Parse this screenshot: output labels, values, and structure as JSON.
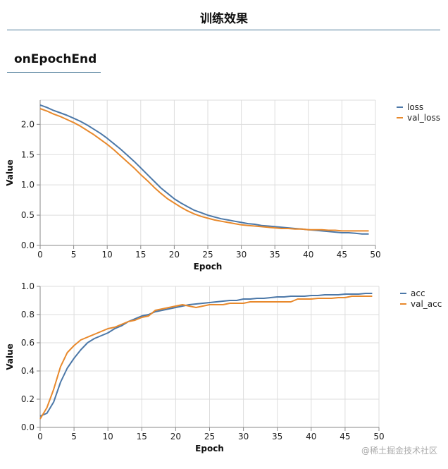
{
  "header": {
    "title": "训练效果"
  },
  "section": {
    "tab_label": "onEpochEnd"
  },
  "watermark": "@稀土掘金技术社区",
  "colors": {
    "series_blue": "#4c78a8",
    "series_orange": "#e8892c",
    "grid": "#dddddd",
    "axis": "#888888"
  },
  "chart_data": [
    {
      "type": "line",
      "xlabel": "Epoch",
      "ylabel": "Value",
      "xlim": [
        0,
        50
      ],
      "ylim": [
        0,
        2.4
      ],
      "xticks": [
        0,
        5,
        10,
        15,
        20,
        25,
        30,
        35,
        40,
        45,
        50
      ],
      "yticks": [
        0.0,
        0.5,
        1.0,
        1.5,
        2.0
      ],
      "ytick_labels": [
        "0.0",
        "0.5",
        "1.0",
        "1.5",
        "2.0"
      ],
      "grid": true,
      "legend": "top-right",
      "series": [
        {
          "name": "loss",
          "x": [
            0,
            1,
            2,
            3,
            4,
            5,
            6,
            7,
            8,
            9,
            10,
            11,
            12,
            13,
            14,
            15,
            16,
            17,
            18,
            19,
            20,
            21,
            22,
            23,
            24,
            25,
            26,
            27,
            28,
            29,
            30,
            31,
            32,
            33,
            34,
            35,
            36,
            37,
            38,
            39,
            40,
            41,
            42,
            43,
            44,
            45,
            46,
            47,
            48,
            49
          ],
          "values": [
            2.32,
            2.28,
            2.23,
            2.19,
            2.15,
            2.1,
            2.05,
            1.99,
            1.92,
            1.85,
            1.77,
            1.68,
            1.59,
            1.49,
            1.39,
            1.28,
            1.17,
            1.06,
            0.95,
            0.86,
            0.77,
            0.7,
            0.64,
            0.58,
            0.54,
            0.5,
            0.47,
            0.44,
            0.42,
            0.4,
            0.38,
            0.36,
            0.35,
            0.33,
            0.32,
            0.31,
            0.3,
            0.29,
            0.28,
            0.27,
            0.26,
            0.25,
            0.24,
            0.23,
            0.22,
            0.21,
            0.21,
            0.2,
            0.19,
            0.19
          ]
        },
        {
          "name": "val_loss",
          "x": [
            0,
            1,
            2,
            3,
            4,
            5,
            6,
            7,
            8,
            9,
            10,
            11,
            12,
            13,
            14,
            15,
            16,
            17,
            18,
            19,
            20,
            21,
            22,
            23,
            24,
            25,
            26,
            27,
            28,
            29,
            30,
            31,
            32,
            33,
            34,
            35,
            36,
            37,
            38,
            39,
            40,
            41,
            42,
            43,
            44,
            45,
            46,
            47,
            48,
            49
          ],
          "values": [
            2.26,
            2.22,
            2.17,
            2.13,
            2.08,
            2.03,
            1.97,
            1.9,
            1.83,
            1.75,
            1.67,
            1.58,
            1.48,
            1.38,
            1.28,
            1.17,
            1.07,
            0.96,
            0.86,
            0.77,
            0.7,
            0.63,
            0.57,
            0.52,
            0.48,
            0.45,
            0.42,
            0.4,
            0.38,
            0.36,
            0.34,
            0.33,
            0.32,
            0.31,
            0.3,
            0.29,
            0.28,
            0.28,
            0.27,
            0.27,
            0.26,
            0.26,
            0.26,
            0.25,
            0.25,
            0.24,
            0.24,
            0.24,
            0.24,
            0.24
          ]
        }
      ]
    },
    {
      "type": "line",
      "xlabel": "Epoch",
      "ylabel": "Value",
      "xlim": [
        0,
        50
      ],
      "ylim": [
        0,
        1.0
      ],
      "xticks": [
        0,
        5,
        10,
        15,
        20,
        25,
        30,
        35,
        40,
        45,
        50
      ],
      "yticks": [
        0.0,
        0.2,
        0.4,
        0.6,
        0.8,
        1.0
      ],
      "ytick_labels": [
        "0.0",
        "0.2",
        "0.4",
        "0.6",
        "0.8",
        "1.0"
      ],
      "grid": true,
      "legend": "top-right",
      "series": [
        {
          "name": "acc",
          "x": [
            0,
            1,
            2,
            3,
            4,
            5,
            6,
            7,
            8,
            9,
            10,
            11,
            12,
            13,
            14,
            15,
            16,
            17,
            18,
            19,
            20,
            21,
            22,
            23,
            24,
            25,
            26,
            27,
            28,
            29,
            30,
            31,
            32,
            33,
            34,
            35,
            36,
            37,
            38,
            39,
            40,
            41,
            42,
            43,
            44,
            45,
            46,
            47,
            48,
            49
          ],
          "values": [
            0.08,
            0.1,
            0.18,
            0.32,
            0.42,
            0.49,
            0.55,
            0.6,
            0.63,
            0.65,
            0.67,
            0.7,
            0.72,
            0.75,
            0.77,
            0.79,
            0.8,
            0.82,
            0.83,
            0.84,
            0.85,
            0.86,
            0.87,
            0.875,
            0.88,
            0.885,
            0.89,
            0.895,
            0.9,
            0.9,
            0.91,
            0.91,
            0.915,
            0.915,
            0.92,
            0.925,
            0.925,
            0.93,
            0.93,
            0.93,
            0.935,
            0.935,
            0.94,
            0.94,
            0.94,
            0.945,
            0.945,
            0.945,
            0.95,
            0.95
          ]
        },
        {
          "name": "val_acc",
          "x": [
            0,
            1,
            2,
            3,
            4,
            5,
            6,
            7,
            8,
            9,
            10,
            11,
            12,
            13,
            14,
            15,
            16,
            17,
            18,
            19,
            20,
            21,
            22,
            23,
            24,
            25,
            26,
            27,
            28,
            29,
            30,
            31,
            32,
            33,
            34,
            35,
            36,
            37,
            38,
            39,
            40,
            41,
            42,
            43,
            44,
            45,
            46,
            47,
            48,
            49
          ],
          "values": [
            0.06,
            0.14,
            0.27,
            0.43,
            0.53,
            0.58,
            0.62,
            0.64,
            0.66,
            0.68,
            0.7,
            0.71,
            0.73,
            0.75,
            0.76,
            0.78,
            0.79,
            0.83,
            0.84,
            0.85,
            0.86,
            0.87,
            0.86,
            0.85,
            0.86,
            0.87,
            0.87,
            0.87,
            0.88,
            0.88,
            0.88,
            0.89,
            0.89,
            0.89,
            0.89,
            0.89,
            0.89,
            0.89,
            0.91,
            0.91,
            0.91,
            0.915,
            0.915,
            0.915,
            0.92,
            0.92,
            0.93,
            0.93,
            0.93,
            0.93
          ]
        }
      ]
    }
  ]
}
